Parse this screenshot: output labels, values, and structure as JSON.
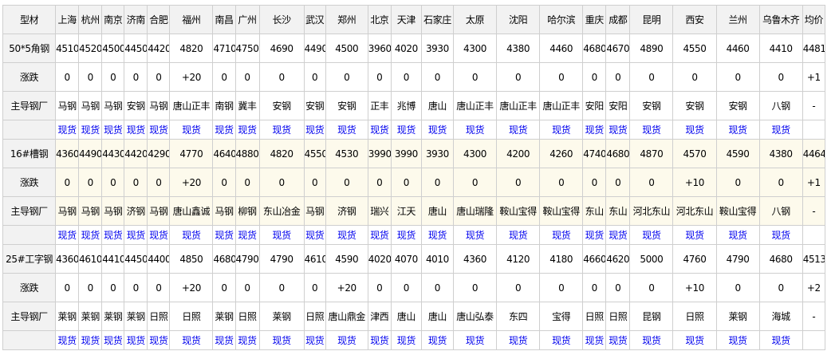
{
  "header": [
    "型材",
    "上海",
    "杭州",
    "南京",
    "济南",
    "合肥",
    "福州",
    "南昌",
    "广州",
    "长沙",
    "武汉",
    "郑州",
    "北京",
    "天津",
    "石家庄",
    "太原",
    "沈阳",
    "哈尔滨",
    "重庆",
    "成都",
    "昆明",
    "西安",
    "兰州",
    "乌鲁木齐",
    "均价"
  ],
  "change_label": "涨跌",
  "mill_label": "主导钢厂",
  "spot_label": "现货",
  "groups": [
    {
      "name": "50*5角钢",
      "prices": [
        "4510",
        "4520",
        "4500",
        "4450",
        "4420",
        "4820",
        "4710",
        "4750",
        "4690",
        "4490",
        "4500",
        "3960",
        "4020",
        "3930",
        "4300",
        "4380",
        "4460",
        "4680",
        "4670",
        "4890",
        "4550",
        "4460",
        "4410",
        "4481"
      ],
      "changes": [
        "0",
        "0",
        "0",
        "0",
        "0",
        "+20",
        "0",
        "0",
        "0",
        "0",
        "0",
        "0",
        "0",
        "0",
        "0",
        "0",
        "0",
        "0",
        "0",
        "0",
        "0",
        "0",
        "0",
        "+1"
      ],
      "mills": [
        "马钢",
        "马钢",
        "马钢",
        "安钢",
        "马钢",
        "唐山正丰",
        "南钢",
        "冀丰",
        "安钢",
        "安钢",
        "安钢",
        "正丰",
        "兆博",
        "唐山",
        "唐山正丰",
        "唐山正丰",
        "唐山正丰",
        "安阳",
        "安阳",
        "安钢",
        "安钢",
        "安钢",
        "八钢",
        "-"
      ]
    },
    {
      "name": "16#槽钢",
      "prices": [
        "4360",
        "4490",
        "4430",
        "4420",
        "4290",
        "4770",
        "4640",
        "4880",
        "4820",
        "4550",
        "4530",
        "3990",
        "3990",
        "3930",
        "4300",
        "4200",
        "4260",
        "4740",
        "4680",
        "4870",
        "4570",
        "4590",
        "4380",
        "4464"
      ],
      "changes": [
        "0",
        "0",
        "0",
        "0",
        "0",
        "+20",
        "0",
        "0",
        "0",
        "0",
        "0",
        "0",
        "0",
        "0",
        "0",
        "0",
        "0",
        "0",
        "0",
        "0",
        "+10",
        "0",
        "0",
        "+1"
      ],
      "mills": [
        "马钢",
        "马钢",
        "马钢",
        "济钢",
        "马钢",
        "唐山鑫诚",
        "马钢",
        "柳钢",
        "东山冶金",
        "马钢",
        "济钢",
        "瑞兴",
        "江天",
        "唐山",
        "唐山瑞隆",
        "鞍山宝得",
        "鞍山宝得",
        "东山",
        "东山",
        "河北东山",
        "河北东山",
        "鞍山宝得",
        "八钢",
        "-"
      ]
    },
    {
      "name": "25#工字钢",
      "prices": [
        "4360",
        "4610",
        "4410",
        "4450",
        "4400",
        "4850",
        "4680",
        "4790",
        "4790",
        "4610",
        "4590",
        "4020",
        "4070",
        "4010",
        "4360",
        "4120",
        "4180",
        "4660",
        "4620",
        "5000",
        "4760",
        "4790",
        "4680",
        "4513"
      ],
      "changes": [
        "0",
        "0",
        "0",
        "0",
        "0",
        "+20",
        "0",
        "0",
        "0",
        "0",
        "+20",
        "0",
        "0",
        "0",
        "0",
        "0",
        "0",
        "0",
        "0",
        "0",
        "+10",
        "0",
        "0",
        "+2"
      ],
      "mills": [
        "莱钢",
        "莱钢",
        "莱钢",
        "莱钢",
        "日照",
        "日照",
        "莱钢",
        "日照",
        "莱钢",
        "日照",
        "唐山鼎金",
        "津西",
        "唐山",
        "唐山",
        "唐山弘泰",
        "东四",
        "宝得",
        "日照",
        "日照",
        "昆钢",
        "日照",
        "莱钢",
        "海城",
        "-"
      ]
    }
  ]
}
